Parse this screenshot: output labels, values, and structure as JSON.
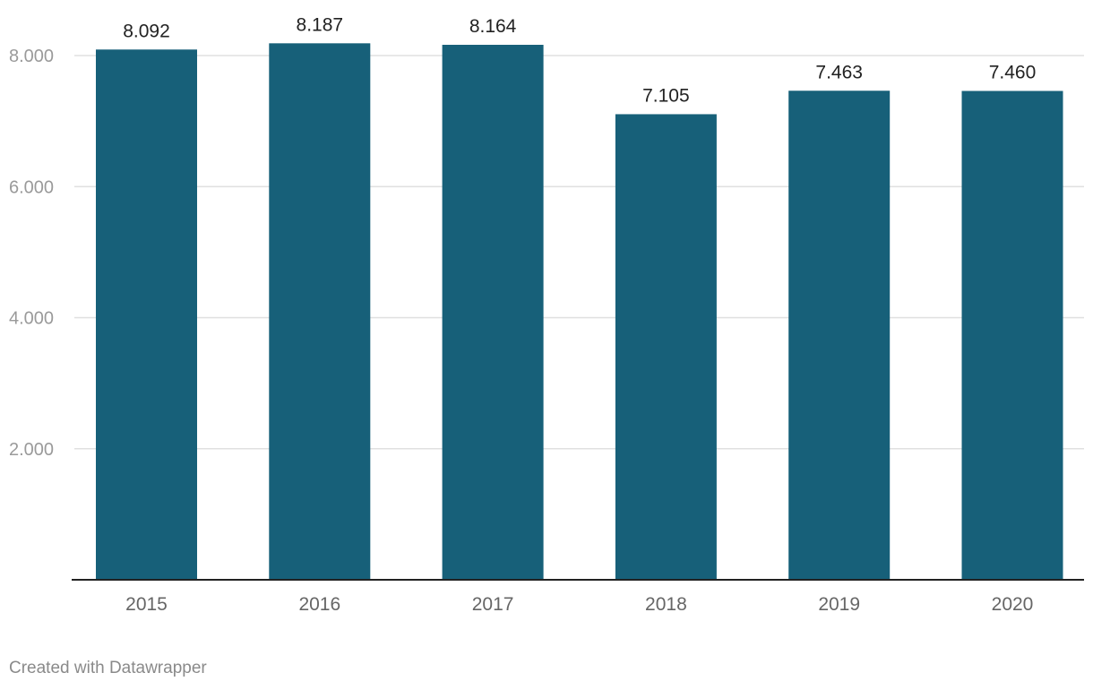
{
  "chart_data": {
    "type": "bar",
    "title": "",
    "xlabel": "",
    "ylabel": "",
    "categories": [
      "2015",
      "2016",
      "2017",
      "2018",
      "2019",
      "2020"
    ],
    "values": [
      8092,
      8187,
      8164,
      7105,
      7463,
      7460
    ],
    "value_labels": [
      "8.092",
      "8.187",
      "8.164",
      "7.105",
      "7.463",
      "7.460"
    ],
    "ylim": [
      0,
      8000
    ],
    "yticks": [
      2000,
      4000,
      6000,
      8000
    ],
    "ytick_labels": [
      "2.000",
      "4.000",
      "6.000",
      "8.000"
    ],
    "grid": true,
    "bar_color": "#176079"
  },
  "footer": {
    "credit": "Created with Datawrapper"
  }
}
